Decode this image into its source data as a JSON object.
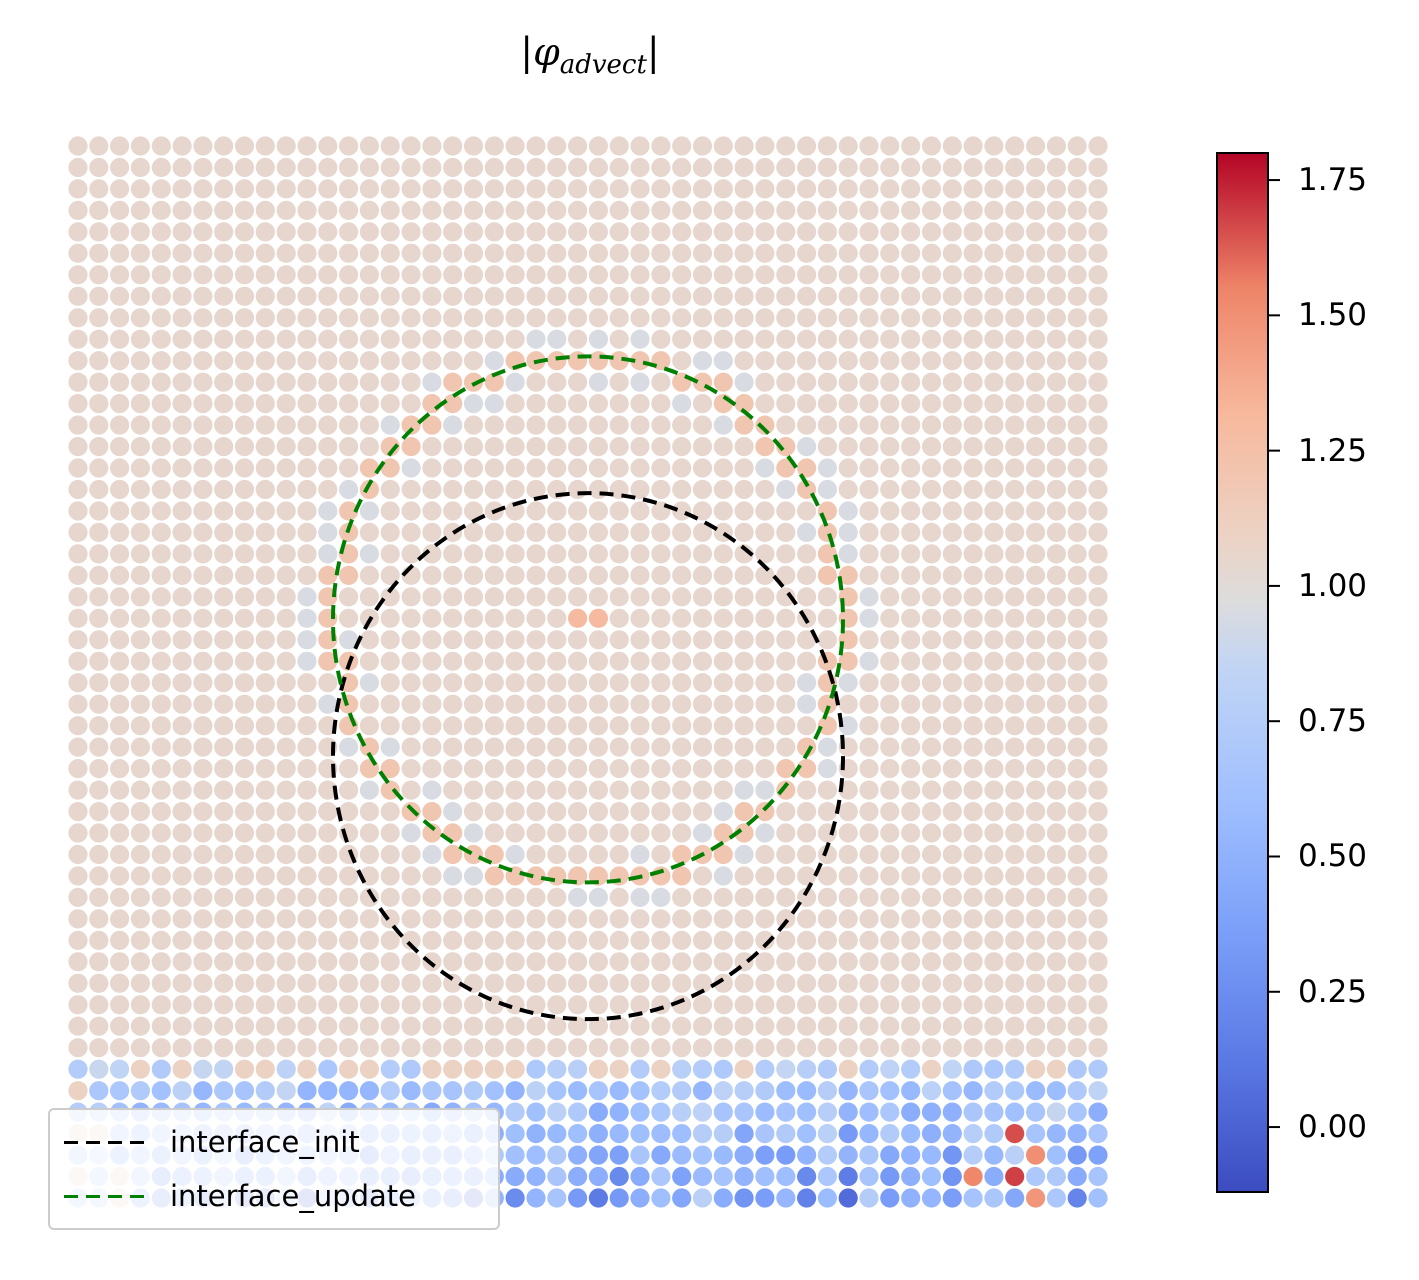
{
  "chart_data": {
    "type": "scatter",
    "title": "|φ_advect|",
    "title_parts": {
      "open": "|",
      "symbol": "φ",
      "subscript": "advect",
      "close": "|"
    },
    "grid_size": [
      50,
      50
    ],
    "field_description_values": {
      "background_value": 1.05,
      "interface_ring_value": 1.2,
      "inner_ring_value": 0.95,
      "center_value": 1.3
    },
    "interfaces": [
      {
        "name": "interface_init",
        "center": [
          0.5,
          0.42
        ],
        "radius": 0.25,
        "color": "#000000"
      },
      {
        "name": "interface_update",
        "center": [
          0.5,
          0.55
        ],
        "radius": 0.25,
        "color": "#008000"
      }
    ],
    "colorbar": {
      "colormap": "coolwarm",
      "vmin": -0.12,
      "vmax": 1.8,
      "ticks": [
        0.0,
        0.25,
        0.5,
        0.75,
        1.0,
        1.25,
        1.5,
        1.75
      ],
      "tick_labels": [
        "0.00",
        "0.25",
        "0.50",
        "0.75",
        "1.00",
        "1.25",
        "1.50",
        "1.75"
      ]
    },
    "legend": {
      "position": "lower-left",
      "entries": [
        "interface_init",
        "interface_update"
      ]
    },
    "axes_visible": false,
    "grid": false
  },
  "legend": {
    "items": [
      {
        "label": "interface_init",
        "color": "#000000"
      },
      {
        "label": "interface_update",
        "color": "#008000"
      }
    ]
  }
}
